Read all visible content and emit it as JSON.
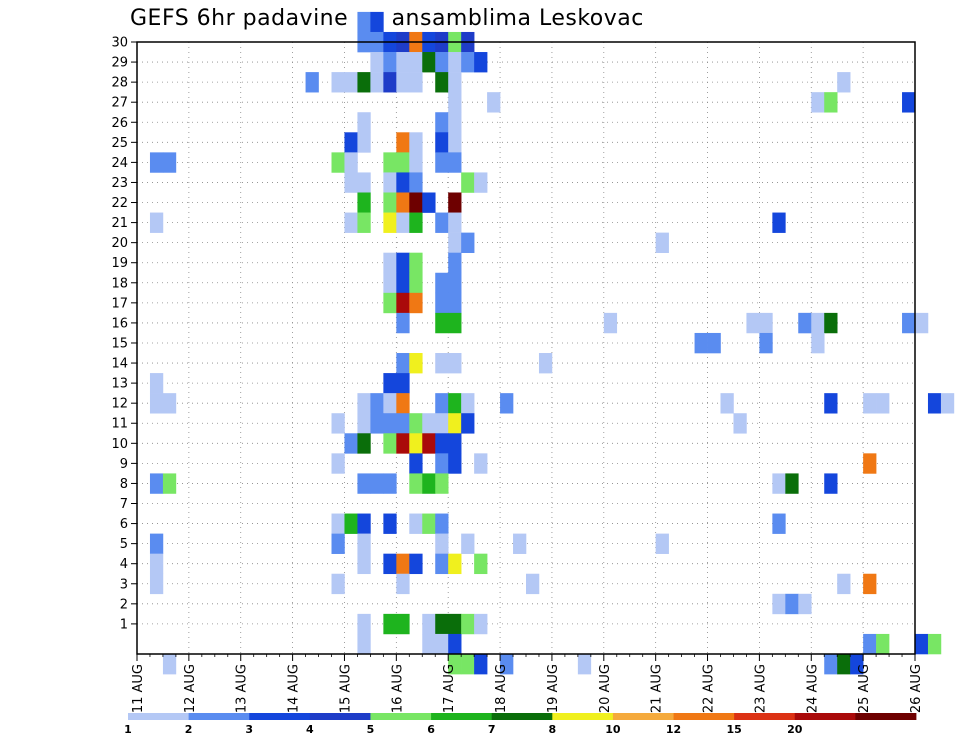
{
  "chart_data": {
    "type": "heatmap",
    "title": "GEFS 6hr padavine po ansamblima Leskovac",
    "xlabel": "",
    "ylabel": "",
    "x_ticks": [
      "11 AUG",
      "12 AUG",
      "13 AUG",
      "14 AUG",
      "15 AUG",
      "16 AUG",
      "17 AUG",
      "18 AUG",
      "19 AUG",
      "20 AUG",
      "21 AUG",
      "22 AUG",
      "23 AUG",
      "24 AUG",
      "25 AUG",
      "26 AUG"
    ],
    "y_ticks": [
      1,
      2,
      3,
      4,
      5,
      6,
      7,
      8,
      9,
      10,
      11,
      12,
      13,
      14,
      15,
      16,
      17,
      18,
      19,
      20,
      21,
      22,
      23,
      24,
      25,
      26,
      27,
      28,
      29,
      30
    ],
    "y_range": [
      0,
      30
    ],
    "step_hours": 6,
    "grid": "dotted",
    "colorbar": {
      "labels": [
        "1",
        "2",
        "3",
        "4",
        "5",
        "6",
        "7",
        "8",
        "10",
        "12",
        "15",
        "20"
      ],
      "colors": [
        "#b4c8f5",
        "#5a8cf0",
        "#1446dc",
        "#1e3cc8",
        "#78e664",
        "#1eb41e",
        "#0a6e0a",
        "#f0f01e",
        "#f5aa3c",
        "#f07814",
        "#dc3214",
        "#aa0a0a",
        "#6e0000"
      ]
    },
    "cells": [
      [
        17,
        31,
        2
      ],
      [
        18,
        31,
        3
      ],
      [
        17,
        30,
        2
      ],
      [
        18,
        30,
        2
      ],
      [
        19,
        30,
        3
      ],
      [
        20,
        30,
        4
      ],
      [
        21,
        30,
        10
      ],
      [
        22,
        30,
        3
      ],
      [
        23,
        30,
        4
      ],
      [
        24,
        30,
        5
      ],
      [
        25,
        30,
        4
      ],
      [
        18,
        29,
        1
      ],
      [
        19,
        29,
        2
      ],
      [
        20,
        29,
        1
      ],
      [
        21,
        29,
        1
      ],
      [
        22,
        29,
        7
      ],
      [
        23,
        29,
        2
      ],
      [
        24,
        29,
        1
      ],
      [
        25,
        29,
        2
      ],
      [
        26,
        29,
        3
      ],
      [
        13,
        28,
        2
      ],
      [
        15,
        28,
        1
      ],
      [
        16,
        28,
        1
      ],
      [
        17,
        28,
        7
      ],
      [
        18,
        28,
        1
      ],
      [
        19,
        28,
        4
      ],
      [
        20,
        28,
        1
      ],
      [
        21,
        28,
        1
      ],
      [
        23,
        28,
        7
      ],
      [
        24,
        28,
        1
      ],
      [
        54,
        28,
        1
      ],
      [
        24,
        27,
        1
      ],
      [
        27,
        27,
        1
      ],
      [
        52,
        27,
        1
      ],
      [
        53,
        27,
        5
      ],
      [
        59,
        27,
        3
      ],
      [
        17,
        26,
        1
      ],
      [
        23,
        26,
        2
      ],
      [
        24,
        26,
        1
      ],
      [
        16,
        25,
        3
      ],
      [
        17,
        25,
        1
      ],
      [
        20,
        25,
        10
      ],
      [
        21,
        25,
        1
      ],
      [
        23,
        25,
        3
      ],
      [
        24,
        25,
        1
      ],
      [
        1,
        24,
        2
      ],
      [
        2,
        24,
        2
      ],
      [
        15,
        24,
        5
      ],
      [
        16,
        24,
        1
      ],
      [
        19,
        24,
        5
      ],
      [
        20,
        24,
        5
      ],
      [
        21,
        24,
        1
      ],
      [
        23,
        24,
        2
      ],
      [
        24,
        24,
        2
      ],
      [
        16,
        23,
        1
      ],
      [
        17,
        23,
        1
      ],
      [
        19,
        23,
        1
      ],
      [
        20,
        23,
        3
      ],
      [
        21,
        23,
        2
      ],
      [
        25,
        23,
        5
      ],
      [
        26,
        23,
        1
      ],
      [
        65,
        23,
        3
      ],
      [
        66,
        23,
        2
      ],
      [
        17,
        22,
        6
      ],
      [
        19,
        22,
        5
      ],
      [
        20,
        22,
        10
      ],
      [
        21,
        22,
        13
      ],
      [
        22,
        22,
        3
      ],
      [
        24,
        22,
        13
      ],
      [
        1,
        21,
        1
      ],
      [
        16,
        21,
        1
      ],
      [
        17,
        21,
        5
      ],
      [
        19,
        21,
        8
      ],
      [
        20,
        21,
        1
      ],
      [
        21,
        21,
        6
      ],
      [
        23,
        21,
        2
      ],
      [
        24,
        21,
        1
      ],
      [
        49,
        21,
        3
      ],
      [
        24,
        20,
        1
      ],
      [
        25,
        20,
        2
      ],
      [
        40,
        20,
        1
      ],
      [
        19,
        19,
        1
      ],
      [
        20,
        19,
        3
      ],
      [
        21,
        19,
        5
      ],
      [
        24,
        19,
        2
      ],
      [
        19,
        18,
        1
      ],
      [
        20,
        18,
        3
      ],
      [
        21,
        18,
        5
      ],
      [
        23,
        18,
        2
      ],
      [
        24,
        18,
        2
      ],
      [
        67,
        18,
        3
      ],
      [
        68,
        18,
        2
      ],
      [
        69,
        18,
        3
      ],
      [
        19,
        17,
        5
      ],
      [
        20,
        17,
        12
      ],
      [
        21,
        17,
        10
      ],
      [
        23,
        17,
        2
      ],
      [
        24,
        17,
        2
      ],
      [
        20,
        16,
        2
      ],
      [
        23,
        16,
        6
      ],
      [
        24,
        16,
        6
      ],
      [
        36,
        16,
        1
      ],
      [
        47,
        16,
        1
      ],
      [
        48,
        16,
        1
      ],
      [
        51,
        16,
        1
      ],
      [
        51,
        16,
        2
      ],
      [
        52,
        16,
        1
      ],
      [
        53,
        16,
        7
      ],
      [
        59,
        16,
        2
      ],
      [
        60,
        16,
        1
      ],
      [
        43,
        15,
        2
      ],
      [
        44,
        15,
        2
      ],
      [
        48,
        15,
        2
      ],
      [
        52,
        15,
        1
      ],
      [
        20,
        14,
        2
      ],
      [
        21,
        14,
        8
      ],
      [
        23,
        14,
        1
      ],
      [
        24,
        14,
        1
      ],
      [
        31,
        14,
        1
      ],
      [
        1,
        13,
        1
      ],
      [
        19,
        13,
        3
      ],
      [
        20,
        13,
        3
      ],
      [
        1,
        12,
        1
      ],
      [
        2,
        12,
        1
      ],
      [
        17,
        12,
        1
      ],
      [
        18,
        12,
        2
      ],
      [
        19,
        12,
        1
      ],
      [
        20,
        12,
        10
      ],
      [
        23,
        12,
        2
      ],
      [
        24,
        12,
        6
      ],
      [
        25,
        12,
        1
      ],
      [
        28,
        12,
        2
      ],
      [
        45,
        12,
        1
      ],
      [
        53,
        12,
        3
      ],
      [
        56,
        12,
        1
      ],
      [
        57,
        12,
        1
      ],
      [
        61,
        12,
        3
      ],
      [
        62,
        12,
        1
      ],
      [
        64,
        12,
        3
      ],
      [
        65,
        12,
        5
      ],
      [
        15,
        11,
        1
      ],
      [
        17,
        11,
        1
      ],
      [
        18,
        11,
        2
      ],
      [
        19,
        11,
        2
      ],
      [
        20,
        11,
        2
      ],
      [
        21,
        11,
        5
      ],
      [
        22,
        11,
        1
      ],
      [
        23,
        11,
        1
      ],
      [
        24,
        11,
        8
      ],
      [
        25,
        11,
        3
      ],
      [
        46,
        11,
        1
      ],
      [
        16,
        10,
        2
      ],
      [
        17,
        10,
        7
      ],
      [
        19,
        10,
        5
      ],
      [
        20,
        10,
        12
      ],
      [
        21,
        10,
        8
      ],
      [
        22,
        10,
        12
      ],
      [
        23,
        10,
        3
      ],
      [
        24,
        10,
        3
      ],
      [
        15,
        9,
        1
      ],
      [
        21,
        9,
        3
      ],
      [
        23,
        9,
        2
      ],
      [
        24,
        9,
        3
      ],
      [
        26,
        9,
        1
      ],
      [
        56,
        9,
        10
      ],
      [
        1,
        8,
        2
      ],
      [
        2,
        8,
        5
      ],
      [
        17,
        8,
        2
      ],
      [
        18,
        8,
        2
      ],
      [
        19,
        8,
        2
      ],
      [
        21,
        8,
        5
      ],
      [
        22,
        8,
        6
      ],
      [
        23,
        8,
        5
      ],
      [
        49,
        8,
        1
      ],
      [
        50,
        8,
        7
      ],
      [
        53,
        8,
        3
      ],
      [
        15,
        6,
        1
      ],
      [
        16,
        6,
        6
      ],
      [
        17,
        6,
        3
      ],
      [
        19,
        6,
        3
      ],
      [
        21,
        6,
        1
      ],
      [
        22,
        6,
        5
      ],
      [
        23,
        6,
        2
      ],
      [
        49,
        6,
        2
      ],
      [
        1,
        5,
        2
      ],
      [
        15,
        5,
        2
      ],
      [
        17,
        5,
        1
      ],
      [
        23,
        5,
        1
      ],
      [
        25,
        5,
        1
      ],
      [
        29,
        5,
        1
      ],
      [
        40,
        5,
        1
      ],
      [
        1,
        4,
        1
      ],
      [
        17,
        4,
        1
      ],
      [
        19,
        4,
        3
      ],
      [
        20,
        4,
        10
      ],
      [
        21,
        4,
        3
      ],
      [
        23,
        4,
        2
      ],
      [
        24,
        4,
        8
      ],
      [
        26,
        4,
        5
      ],
      [
        65,
        4,
        2
      ],
      [
        66,
        4,
        6
      ],
      [
        1,
        3,
        1
      ],
      [
        15,
        3,
        1
      ],
      [
        20,
        3,
        1
      ],
      [
        30,
        3,
        1
      ],
      [
        54,
        3,
        1
      ],
      [
        56,
        3,
        10
      ],
      [
        49,
        2,
        1
      ],
      [
        50,
        2,
        2
      ],
      [
        51,
        2,
        1
      ],
      [
        17,
        1,
        1
      ],
      [
        19,
        1,
        6
      ],
      [
        20,
        1,
        6
      ],
      [
        22,
        1,
        1
      ],
      [
        23,
        1,
        7
      ],
      [
        24,
        1,
        7
      ],
      [
        25,
        1,
        5
      ],
      [
        26,
        1,
        1
      ],
      [
        17,
        0,
        1
      ],
      [
        22,
        0,
        1
      ],
      [
        23,
        0,
        1
      ],
      [
        24,
        0,
        3
      ],
      [
        56,
        0,
        2
      ],
      [
        57,
        0,
        5
      ],
      [
        60,
        0,
        3
      ],
      [
        61,
        0,
        5
      ],
      [
        65,
        0,
        2
      ],
      [
        2,
        -1,
        1
      ],
      [
        24,
        -1,
        5
      ],
      [
        25,
        -1,
        5
      ],
      [
        26,
        -1,
        3
      ],
      [
        28,
        -1,
        2
      ],
      [
        34,
        -1,
        1
      ],
      [
        53,
        -1,
        2
      ],
      [
        54,
        -1,
        7
      ],
      [
        55,
        -1,
        3
      ]
    ]
  }
}
